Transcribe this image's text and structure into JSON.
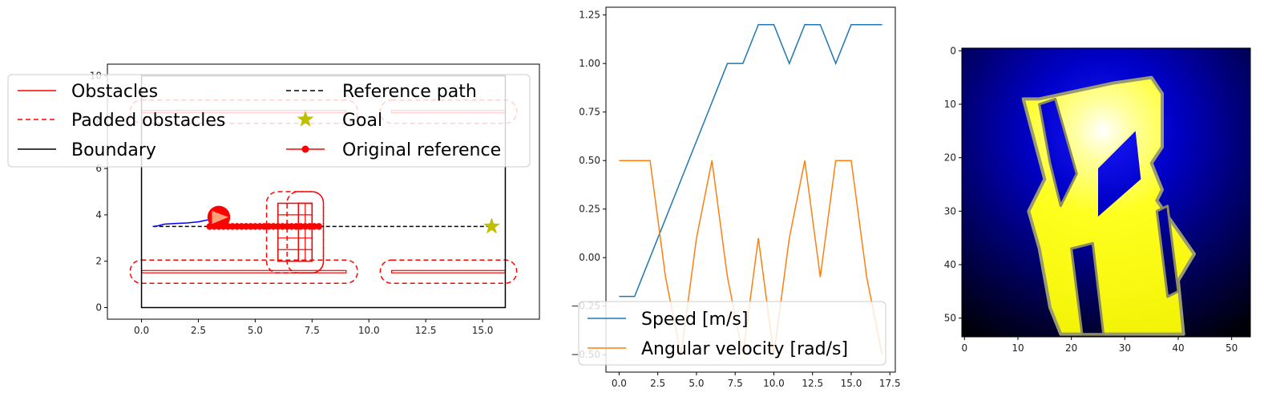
{
  "chart_data": [
    {
      "type": "line",
      "xlim": [
        -1.5,
        17.5
      ],
      "ylim": [
        -0.5,
        10.5
      ],
      "xticks": [
        "0.0",
        "2.5",
        "5.0",
        "7.5",
        "10.0",
        "12.5",
        "15.0"
      ],
      "xtick_values": [
        0,
        2.5,
        5,
        7.5,
        10,
        12.5,
        15
      ],
      "yticks": [
        "0",
        "2",
        "4",
        "6",
        "8",
        "10"
      ],
      "ytick_values": [
        0,
        2,
        4,
        6,
        8,
        10
      ],
      "legend_location": "upper-center",
      "legend": [
        {
          "label": "Obstacles",
          "style": "solid",
          "color": "#ff0000"
        },
        {
          "label": "Padded obstacles",
          "style": "dashed",
          "color": "#ff0000"
        },
        {
          "label": "Boundary",
          "style": "solid",
          "color": "#000000"
        },
        {
          "label": "Reference path",
          "style": "dashed",
          "color": "#000000"
        },
        {
          "label": "Goal",
          "style": "star",
          "color": "#bfbf00"
        },
        {
          "label": "Original reference",
          "style": "line-dot",
          "color": "#ff0000"
        }
      ],
      "boundary": [
        [
          0,
          0
        ],
        [
          16,
          0
        ],
        [
          16,
          10
        ],
        [
          0,
          10
        ]
      ],
      "walls": [
        {
          "x": [
            0,
            9
          ],
          "y": [
            1.5,
            1.6
          ]
        },
        {
          "x": [
            11,
            16
          ],
          "y": [
            1.5,
            1.6
          ]
        },
        {
          "x": [
            0,
            9
          ],
          "y": [
            8.4,
            8.5
          ]
        },
        {
          "x": [
            11,
            16
          ],
          "y": [
            8.4,
            8.5
          ]
        }
      ],
      "padded_walls": [
        {
          "x": [
            -0.5,
            9.5
          ],
          "y": [
            1.05,
            2.05
          ]
        },
        {
          "x": [
            10.5,
            16.5
          ],
          "y": [
            1.05,
            2.05
          ]
        },
        {
          "x": [
            -0.5,
            9.5
          ],
          "y": [
            7.95,
            8.95
          ]
        },
        {
          "x": [
            10.5,
            16.5
          ],
          "y": [
            7.95,
            8.95
          ]
        }
      ],
      "obstacle_a": {
        "x": [
          6,
          7.5
        ],
        "y": [
          2,
          4.5
        ]
      },
      "obstacle_b": {
        "x": [
          6.9,
          7.5
        ],
        "y": [
          2,
          4.5
        ]
      },
      "padded_obstacle_a": {
        "x": [
          5.5,
          8
        ],
        "y": [
          1.5,
          5
        ]
      },
      "padded_obstacle_b": {
        "x": [
          6.4,
          8
        ],
        "y": [
          1.5,
          5
        ]
      },
      "reference_path": {
        "x": [
          0.5,
          15.4
        ],
        "y": [
          3.5,
          3.5
        ]
      },
      "goal": {
        "x": 15.4,
        "y": 3.5
      },
      "original_reference": {
        "x_start": 3.0,
        "x_end": 7.8,
        "step": 0.2,
        "y": 3.5
      },
      "trajectory": {
        "x": [
          0.5,
          0.7,
          1.0,
          1.5,
          2.0,
          2.5,
          3.0,
          3.3
        ],
        "y": [
          3.5,
          3.52,
          3.6,
          3.63,
          3.65,
          3.7,
          3.8,
          3.9
        ]
      },
      "robot": {
        "x": 3.4,
        "y": 3.9,
        "r": 0.5
      }
    },
    {
      "type": "line",
      "xlim": [
        -0.85,
        17.85
      ],
      "ylim": [
        -0.59,
        1.29
      ],
      "xticks": [
        "0.0",
        "2.5",
        "5.0",
        "7.5",
        "10.0",
        "12.5",
        "15.0",
        "17.5"
      ],
      "xtick_values": [
        0,
        2.5,
        5,
        7.5,
        10,
        12.5,
        15,
        17.5
      ],
      "yticks": [
        "−0.50",
        "−0.25",
        "0.00",
        "0.25",
        "0.50",
        "0.75",
        "1.00",
        "1.25"
      ],
      "ytick_values": [
        -0.5,
        -0.25,
        0,
        0.25,
        0.5,
        0.75,
        1.0,
        1.25
      ],
      "legend_location": "lower-right",
      "series": [
        {
          "name": "Speed [m/s]",
          "color": "#1f77b4",
          "x": [
            0,
            1,
            2,
            3,
            4,
            5,
            6,
            7,
            8,
            9,
            10,
            11,
            12,
            13,
            14,
            15,
            16,
            17
          ],
          "y": [
            -0.2,
            -0.2,
            0.0,
            0.2,
            0.4,
            0.6,
            0.8,
            1.0,
            1.0,
            1.2,
            1.2,
            1.0,
            1.2,
            1.2,
            1.0,
            1.2,
            1.2,
            1.2
          ]
        },
        {
          "name": "Angular velocity [rad/s]",
          "color": "#ff7f0e",
          "x": [
            0,
            1,
            2,
            3,
            4,
            5,
            6,
            7,
            8,
            9,
            10,
            11,
            12,
            13,
            14,
            15,
            16,
            17
          ],
          "y": [
            0.5,
            0.5,
            0.5,
            -0.1,
            -0.5,
            0.1,
            0.5,
            -0.1,
            -0.5,
            0.1,
            -0.5,
            0.1,
            0.5,
            -0.1,
            0.5,
            0.5,
            -0.1,
            -0.5
          ]
        }
      ]
    },
    {
      "type": "heatmap",
      "xlim": [
        -0.5,
        53.5
      ],
      "ylim": [
        53.5,
        -0.5
      ],
      "xticks": [
        "0",
        "10",
        "20",
        "30",
        "40",
        "50"
      ],
      "xtick_values": [
        0,
        10,
        20,
        30,
        40,
        50
      ],
      "yticks": [
        "0",
        "10",
        "20",
        "30",
        "40",
        "50"
      ],
      "ytick_values": [
        0,
        10,
        20,
        30,
        40,
        50
      ],
      "colors": {
        "low": "#000000",
        "mid": "#0000c8",
        "high": "#ffff00",
        "peak": "#ffffff"
      },
      "glow_center": {
        "x": 26,
        "y": 15
      },
      "free_region": [
        [
          14,
          9
        ],
        [
          28,
          6
        ],
        [
          35,
          5
        ],
        [
          37,
          8
        ],
        [
          37,
          18
        ],
        [
          35,
          21
        ],
        [
          37,
          26
        ],
        [
          36,
          28
        ],
        [
          43,
          38
        ],
        [
          40,
          43
        ],
        [
          41,
          53
        ],
        [
          18,
          53
        ],
        [
          16,
          48
        ],
        [
          14,
          37
        ],
        [
          12,
          30
        ],
        [
          15,
          24
        ],
        [
          11,
          9
        ]
      ],
      "notch": [
        [
          25,
          22
        ],
        [
          32,
          15
        ],
        [
          33,
          24
        ],
        [
          25,
          31
        ]
      ],
      "holes": [
        [
          [
            14,
            10
          ],
          [
            17,
            9
          ],
          [
            21,
            23
          ],
          [
            18,
            29
          ],
          [
            16,
            21
          ]
        ],
        [
          [
            20,
            37
          ],
          [
            24,
            36
          ],
          [
            26,
            53
          ],
          [
            22,
            53
          ]
        ],
        [
          [
            36,
            30
          ],
          [
            38,
            29
          ],
          [
            40,
            45
          ],
          [
            38,
            46
          ]
        ]
      ]
    }
  ]
}
